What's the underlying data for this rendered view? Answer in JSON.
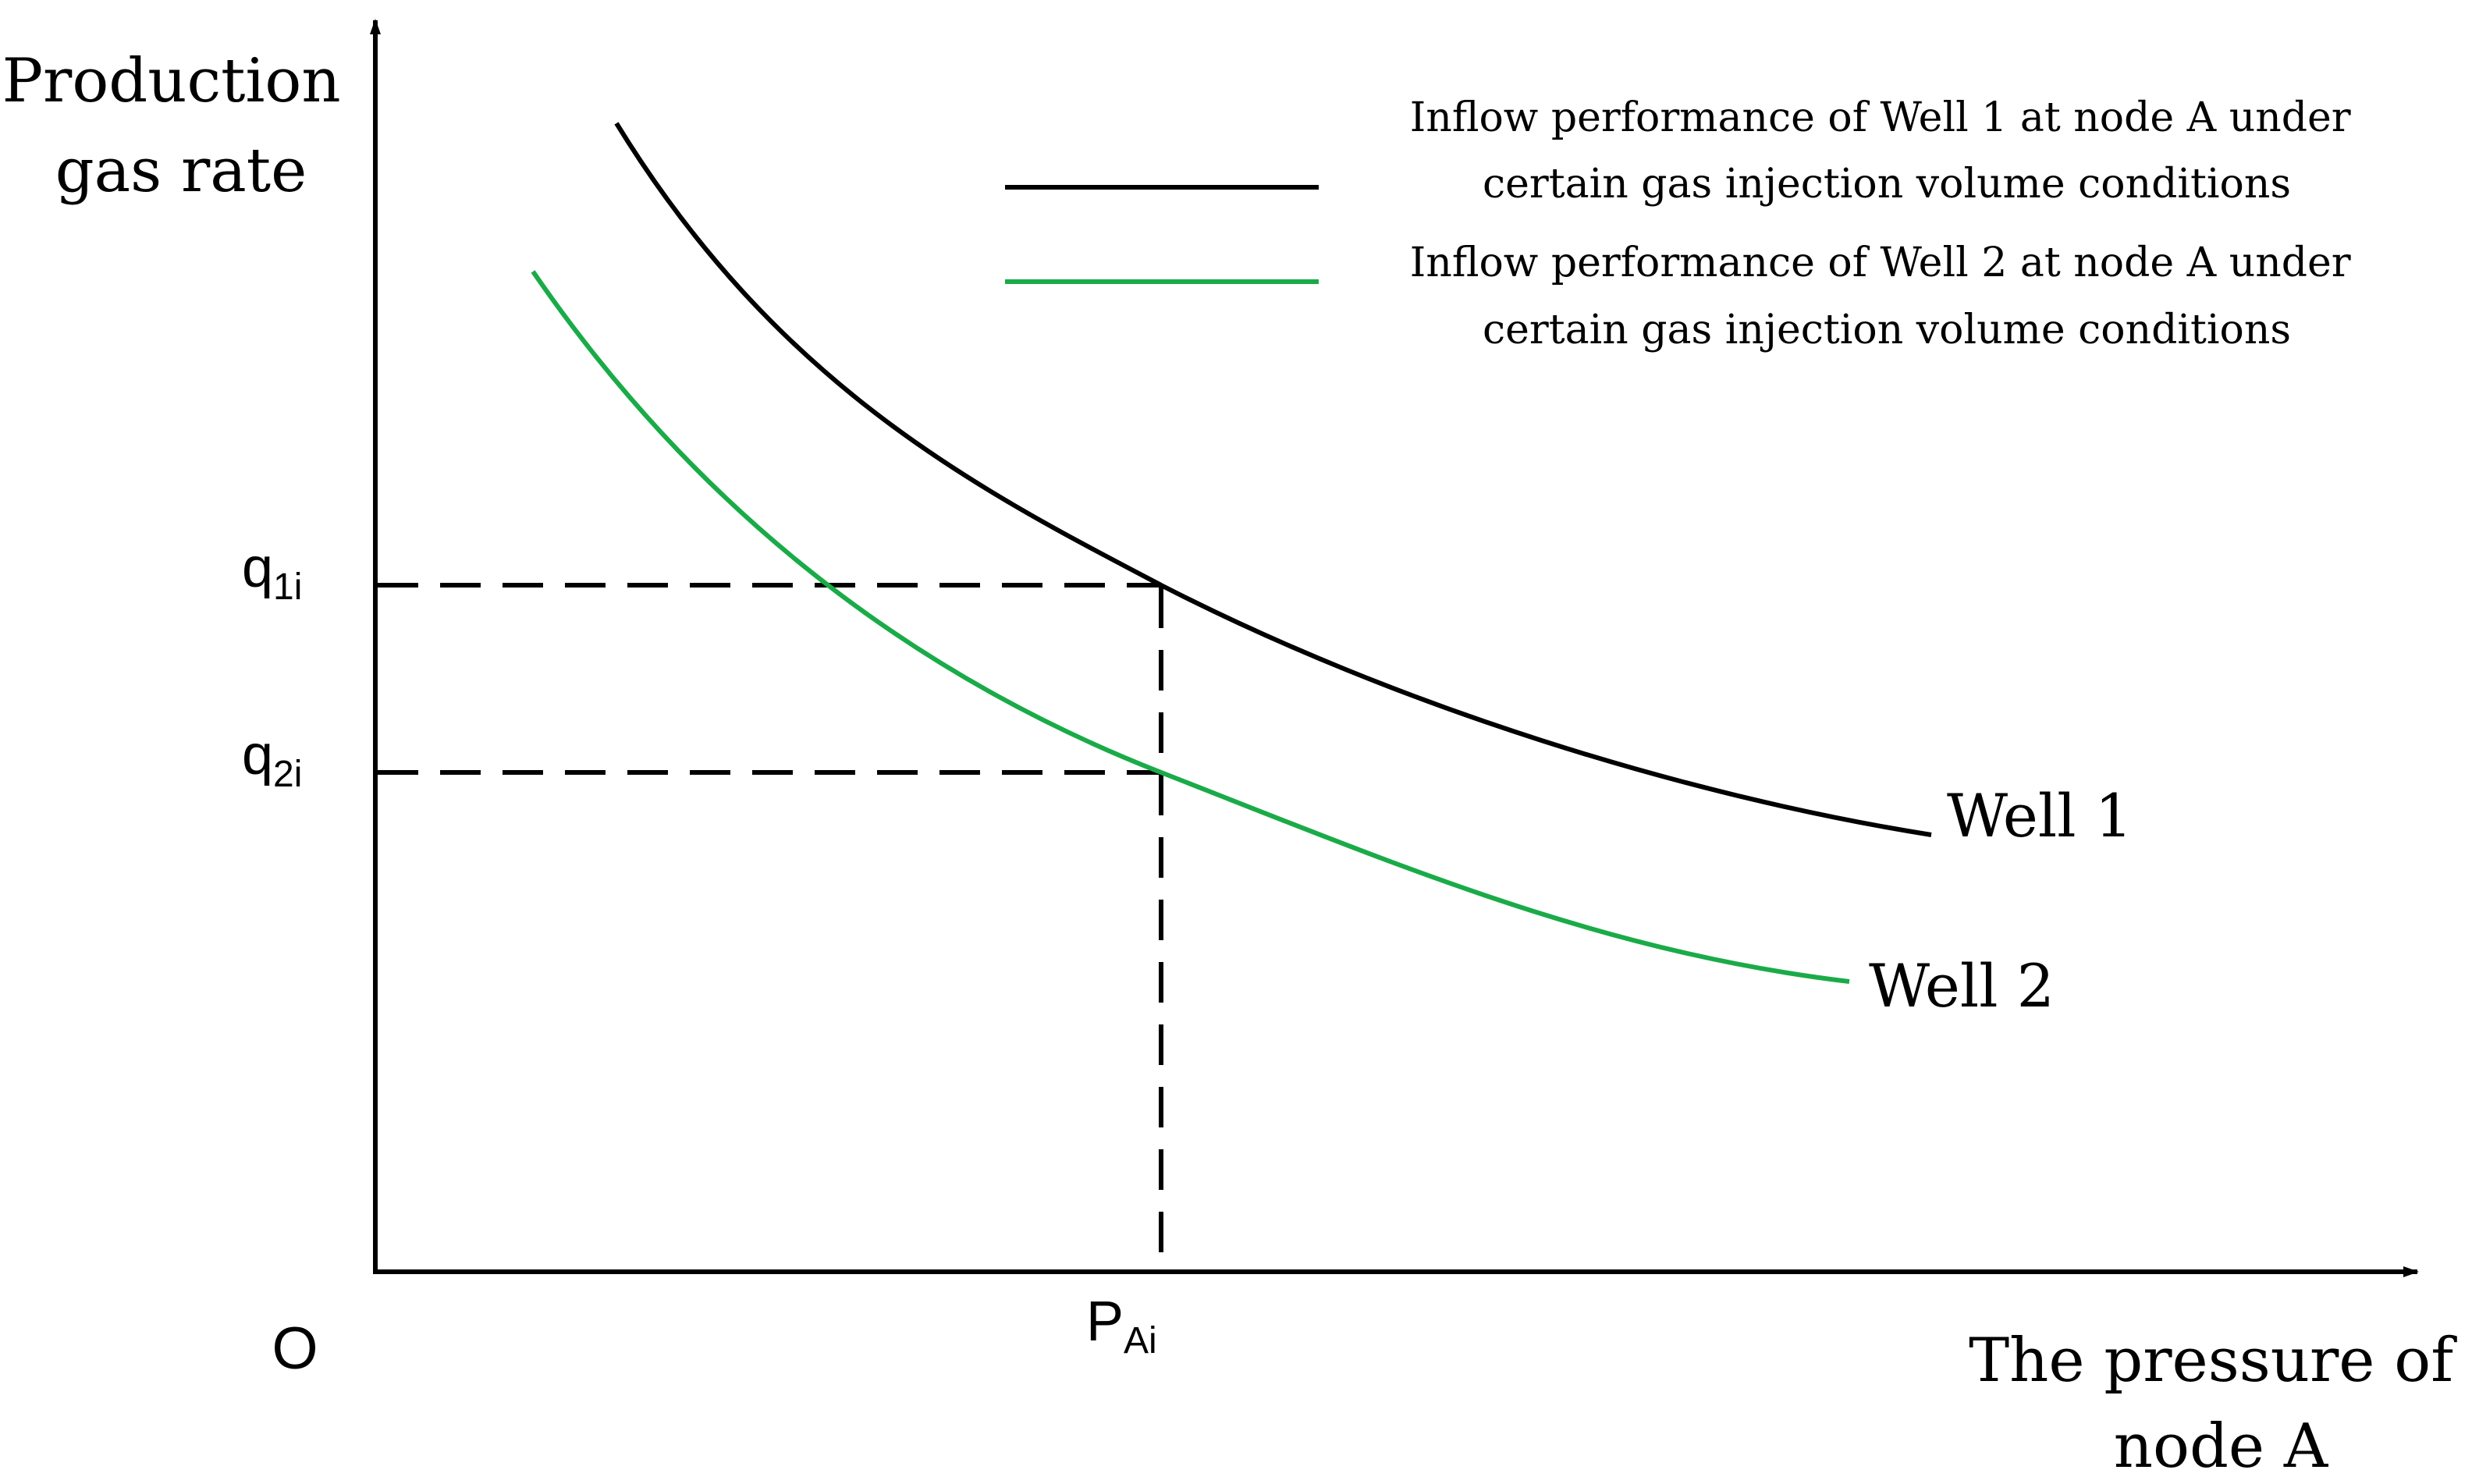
{
  "chart_data": {
    "type": "line",
    "ylabel_lines": [
      "Production",
      "gas rate"
    ],
    "xlabel_lines": [
      "The pressure of",
      "node A"
    ],
    "origin_label": "O",
    "legend": {
      "placement": "top-right",
      "entries": [
        {
          "line_color": "#000000",
          "text_lines": [
            "Inflow performance of Well 1 at node A under",
            "certain gas injection volume conditions"
          ]
        },
        {
          "line_color": "#1aab48",
          "text_lines": [
            "Inflow performance of Well 2 at node A under",
            "certain gas injection volume conditions"
          ]
        }
      ]
    },
    "series": [
      {
        "name": "Well 1",
        "color": "#000000"
      },
      {
        "name": "Well 2",
        "color": "#1aab48"
      }
    ],
    "reference_marks": {
      "x_tick": {
        "base": "P",
        "sub": "Ai"
      },
      "y_ticks": [
        {
          "base": "q",
          "sub": "1i"
        },
        {
          "base": "q",
          "sub": "2i"
        }
      ],
      "line_style": "dashed"
    },
    "axis_color": "#000000"
  }
}
